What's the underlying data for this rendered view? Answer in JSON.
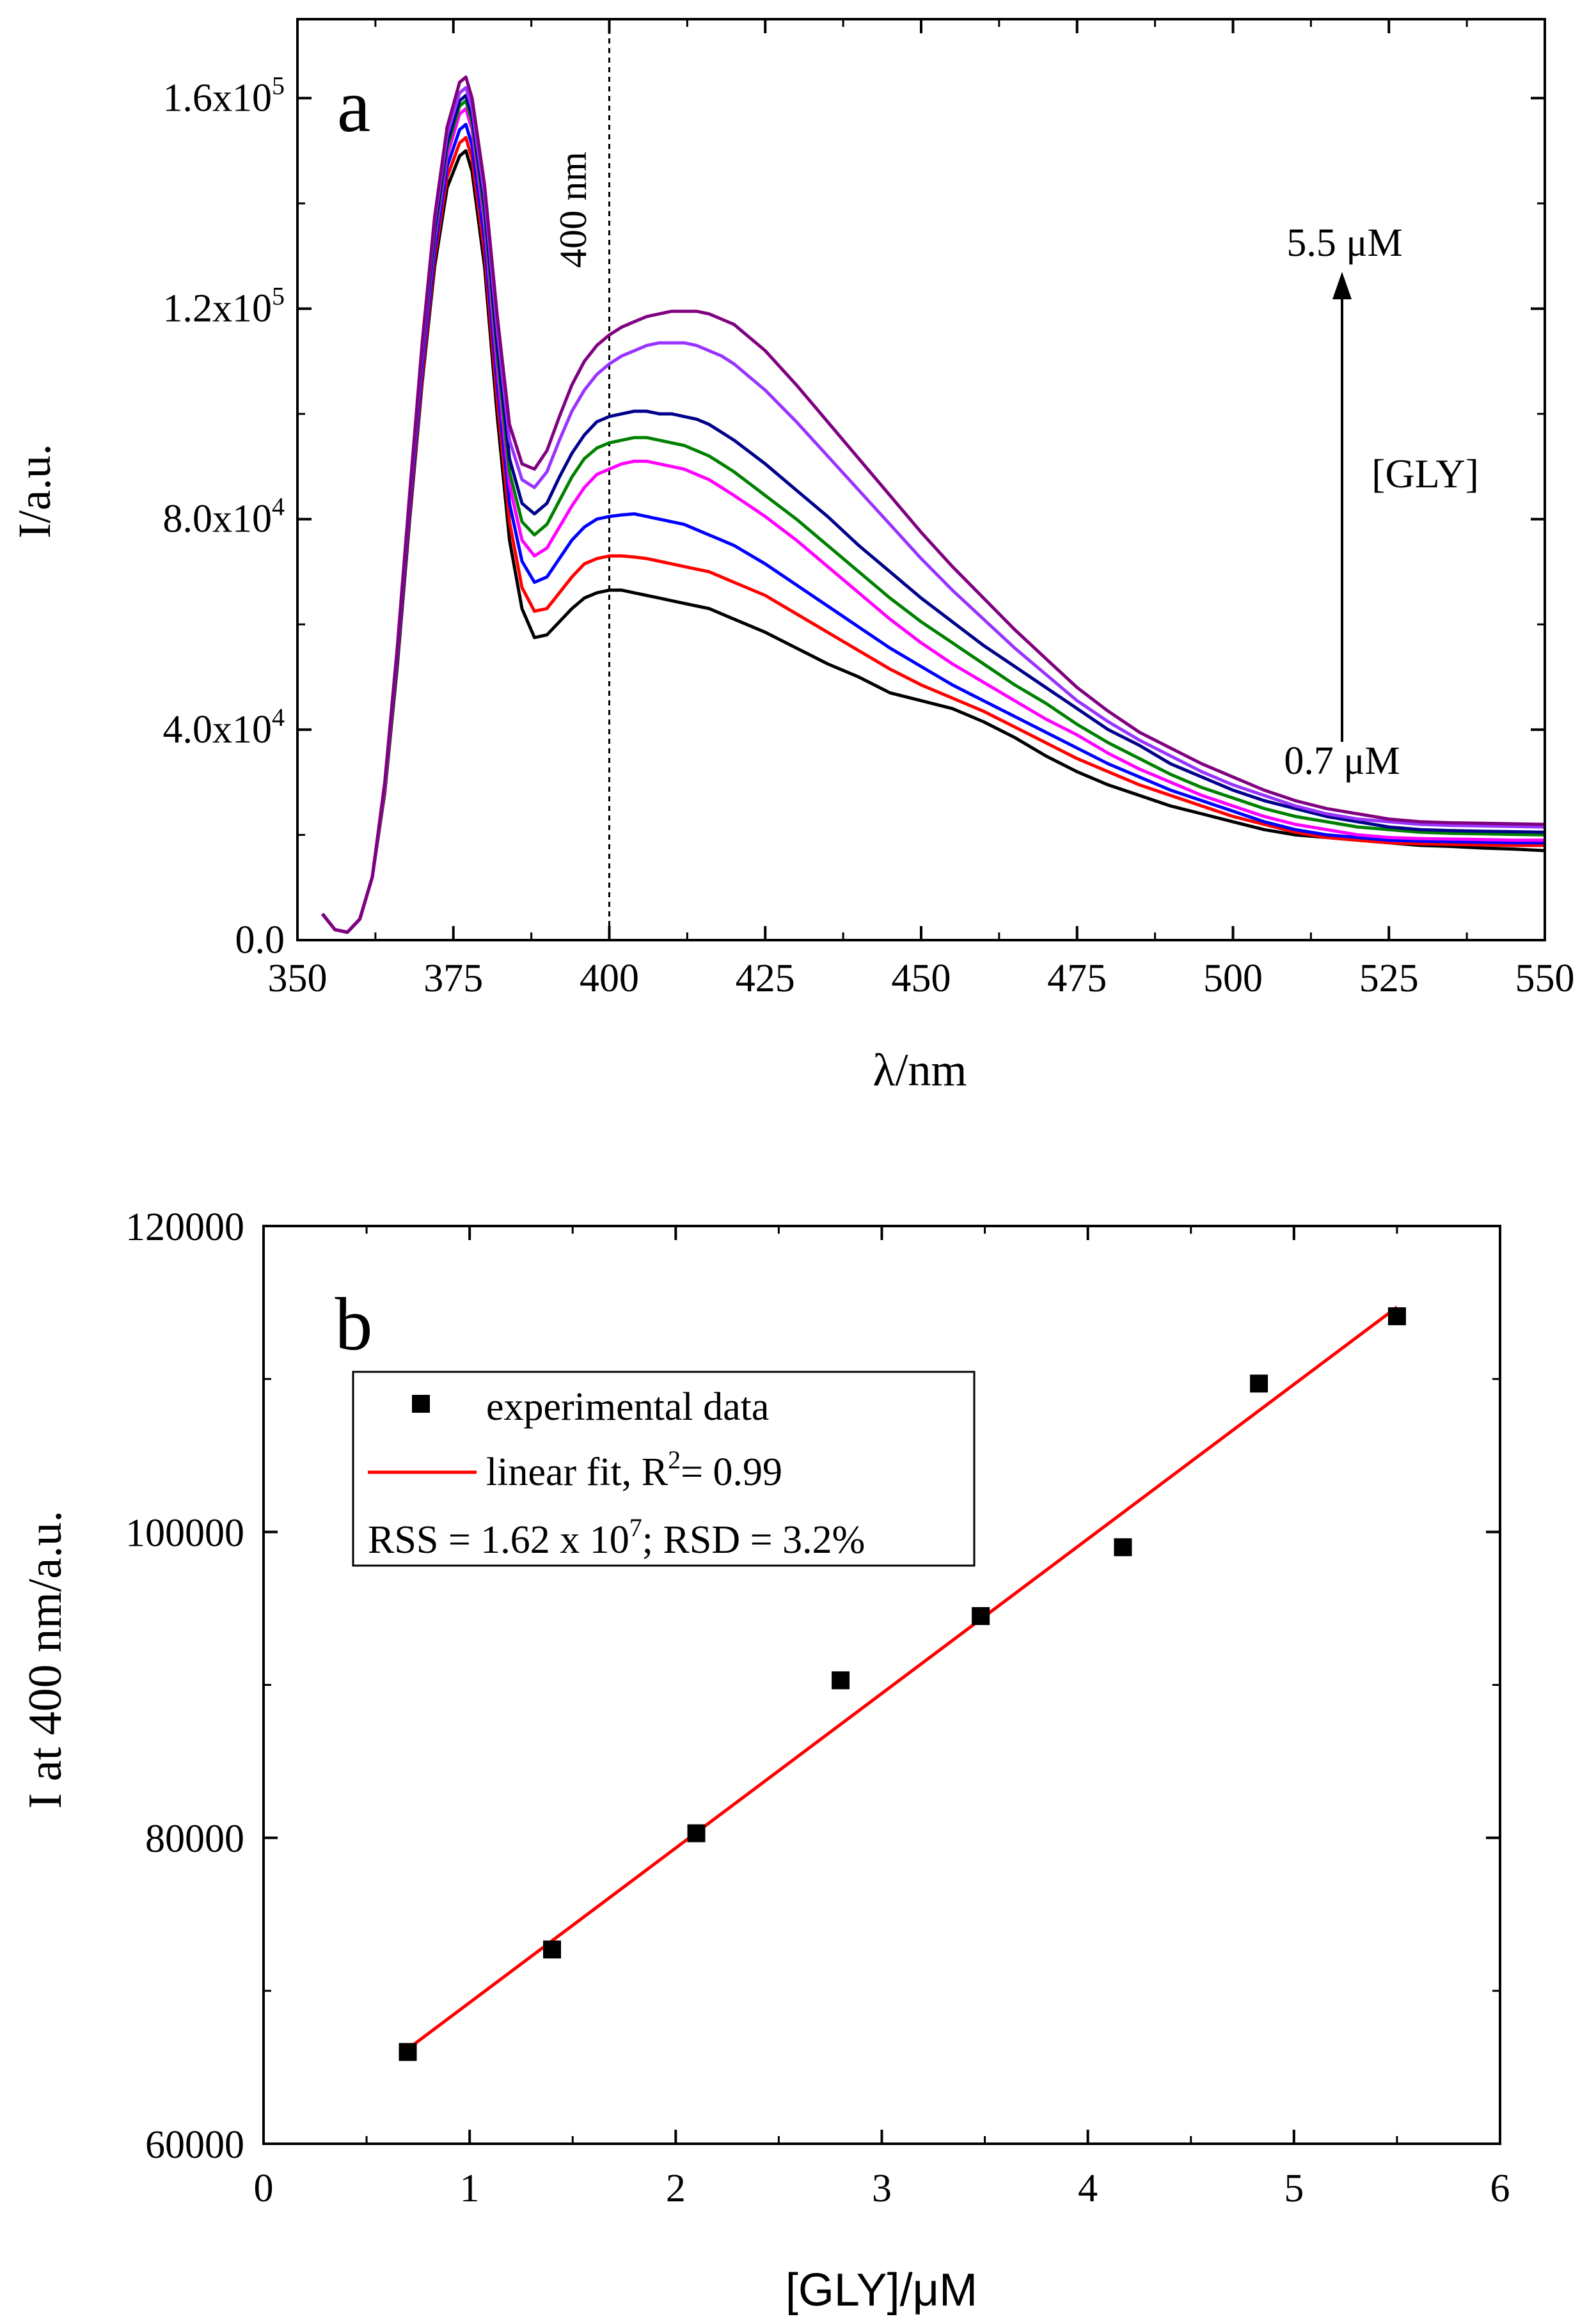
{
  "chart_data": [
    {
      "panel_label": "a",
      "type": "line",
      "xlabel": "λ/nm",
      "ylabel": "I/a.u.",
      "xlim": [
        350,
        550
      ],
      "ylim": [
        0,
        175000
      ],
      "x_ticks": [
        350,
        375,
        400,
        425,
        450,
        475,
        500,
        525,
        550
      ],
      "y_ticks": [
        {
          "value": 0,
          "mantissa": "0.0",
          "exp": ""
        },
        {
          "value": 40000,
          "mantissa": "4.0x10",
          "exp": "4"
        },
        {
          "value": 80000,
          "mantissa": "8.0x10",
          "exp": "4"
        },
        {
          "value": 120000,
          "mantissa": "1.2x10",
          "exp": "5"
        },
        {
          "value": 160000,
          "mantissa": "1.6x10",
          "exp": "5"
        }
      ],
      "grid": false,
      "annotations": {
        "ref_line_label": "400 nm",
        "ref_line_x": 400,
        "top_label": "5.5 μM",
        "bottom_label": "0.7 μM",
        "arrow_label": "[GLY]"
      },
      "x": [
        354,
        356,
        358,
        360,
        362,
        364,
        366,
        368,
        370,
        372,
        374,
        376,
        377,
        378,
        380,
        382,
        384,
        386,
        388,
        390,
        392,
        394,
        396,
        398,
        400,
        402,
        404,
        406,
        408,
        410,
        412,
        414,
        416,
        418,
        420,
        425,
        430,
        435,
        440,
        445,
        450,
        455,
        460,
        465,
        470,
        475,
        480,
        485,
        490,
        495,
        500,
        505,
        510,
        515,
        520,
        525,
        530,
        535,
        540,
        545,
        550
      ],
      "series": [
        {
          "color": "#000000",
          "values": [
            5000,
            2000,
            1500,
            4000,
            12000,
            28000,
            52000,
            80000,
            106000,
            128000,
            143000,
            149000,
            150000,
            146000,
            128000,
            100000,
            76000,
            63000,
            57500,
            58000,
            60500,
            63000,
            65000,
            66000,
            66500,
            66500,
            66000,
            65500,
            65000,
            64500,
            64000,
            63500,
            63000,
            62000,
            61000,
            58500,
            55500,
            52500,
            50000,
            47000,
            45500,
            44000,
            41500,
            38500,
            35000,
            32000,
            29500,
            27500,
            25500,
            24000,
            22500,
            21000,
            20000,
            19500,
            19000,
            18500,
            18000,
            17800,
            17500,
            17300,
            17000
          ]
        },
        {
          "color": "#ff0000",
          "values": [
            5000,
            2000,
            1500,
            4000,
            12000,
            28500,
            53000,
            81000,
            107000,
            129500,
            145000,
            151500,
            152500,
            148500,
            130500,
            103000,
            79500,
            67000,
            62500,
            63000,
            66000,
            69000,
            71500,
            72500,
            73000,
            73000,
            72800,
            72500,
            72000,
            71500,
            71000,
            70500,
            70000,
            69000,
            68000,
            65500,
            62000,
            58500,
            55000,
            51500,
            48500,
            46000,
            43500,
            40500,
            37500,
            34500,
            32000,
            29500,
            27500,
            25500,
            23500,
            22000,
            20500,
            19500,
            19000,
            18500,
            18300,
            18200,
            18100,
            18000,
            18000
          ]
        },
        {
          "color": "#0000ff",
          "values": [
            5000,
            2000,
            1500,
            4000,
            12000,
            29000,
            53500,
            82000,
            108500,
            131000,
            147000,
            154000,
            155000,
            151000,
            133000,
            106000,
            83000,
            72000,
            68000,
            69000,
            72500,
            76000,
            78500,
            80000,
            80500,
            80800,
            81000,
            80500,
            80000,
            79500,
            79000,
            78000,
            77000,
            76000,
            75000,
            71500,
            67500,
            63500,
            59500,
            55500,
            52000,
            48500,
            45500,
            42500,
            39500,
            36500,
            33500,
            31000,
            28500,
            26500,
            24500,
            22500,
            21000,
            20000,
            19500,
            19000,
            18800,
            18700,
            18600,
            18500,
            18500
          ]
        },
        {
          "color": "#ff00ff",
          "values": [
            5000,
            2000,
            1500,
            4000,
            12000,
            29000,
            54000,
            83000,
            110000,
            133000,
            149000,
            157000,
            158000,
            154000,
            136000,
            109000,
            86500,
            76000,
            73000,
            74500,
            78500,
            82500,
            86000,
            88500,
            89500,
            90500,
            91000,
            91000,
            90500,
            90000,
            89500,
            88500,
            87500,
            86000,
            84500,
            80500,
            76000,
            71000,
            66000,
            61000,
            56500,
            52500,
            49000,
            45500,
            42000,
            39000,
            35500,
            32500,
            30000,
            27500,
            25500,
            23500,
            22000,
            21000,
            20000,
            19500,
            19300,
            19200,
            19100,
            19000,
            19000
          ]
        },
        {
          "color": "#008000",
          "values": [
            5000,
            2000,
            1500,
            4000,
            12000,
            29000,
            54000,
            83500,
            111000,
            134000,
            150500,
            158500,
            159500,
            155500,
            138000,
            111500,
            89000,
            79500,
            77000,
            79000,
            83500,
            88000,
            91500,
            93500,
            94500,
            95000,
            95500,
            95500,
            95000,
            94500,
            94000,
            93000,
            92000,
            90500,
            89000,
            84500,
            80000,
            75000,
            70000,
            65000,
            60500,
            56500,
            52500,
            48500,
            45000,
            41000,
            37500,
            34500,
            31500,
            29000,
            27000,
            25000,
            23500,
            22500,
            21500,
            21000,
            20500,
            20300,
            20200,
            20100,
            20000
          ]
        },
        {
          "color": "#00008b",
          "values": [
            5000,
            2000,
            1500,
            4000,
            12000,
            29500,
            54500,
            84000,
            111500,
            135000,
            151500,
            159500,
            160500,
            156500,
            139500,
            113500,
            91500,
            83000,
            81000,
            83000,
            88000,
            92500,
            96000,
            98500,
            99500,
            100000,
            100500,
            100500,
            100000,
            100000,
            99500,
            99000,
            98000,
            96500,
            95000,
            90500,
            85500,
            80500,
            75000,
            70000,
            65000,
            60500,
            56000,
            52000,
            48000,
            44000,
            40000,
            37000,
            33500,
            31000,
            28500,
            26500,
            25000,
            23500,
            22500,
            21500,
            21000,
            20800,
            20700,
            20600,
            20500
          ]
        },
        {
          "color": "#9933ff",
          "values": [
            5000,
            2000,
            1500,
            4000,
            12000,
            29500,
            55000,
            84500,
            112500,
            136500,
            153000,
            161000,
            162000,
            158000,
            141500,
            116500,
            95000,
            87500,
            86000,
            89000,
            95000,
            100500,
            104500,
            107500,
            109500,
            111000,
            112000,
            113000,
            113500,
            113500,
            113500,
            113000,
            112000,
            111000,
            109500,
            104500,
            98500,
            92000,
            85500,
            79000,
            72500,
            66500,
            61000,
            55500,
            50500,
            45500,
            41500,
            38000,
            35000,
            32000,
            29500,
            27500,
            25500,
            24000,
            23000,
            22500,
            22000,
            21800,
            21700,
            21600,
            21500
          ]
        },
        {
          "color": "#800080",
          "values": [
            5000,
            2000,
            1500,
            4000,
            12000,
            30000,
            55500,
            85000,
            113500,
            137500,
            154500,
            163000,
            164000,
            160000,
            143500,
            119000,
            98000,
            90500,
            89500,
            93000,
            99500,
            105500,
            110000,
            113000,
            115000,
            116500,
            117500,
            118500,
            119000,
            119500,
            119500,
            119500,
            119000,
            118000,
            117000,
            112000,
            105500,
            98500,
            91500,
            84500,
            77500,
            71000,
            65000,
            59000,
            53500,
            48000,
            43500,
            39500,
            36500,
            33500,
            31000,
            28500,
            26500,
            25000,
            24000,
            23000,
            22500,
            22300,
            22200,
            22100,
            22000
          ]
        }
      ]
    },
    {
      "panel_label": "b",
      "type": "scatter",
      "xlabel": "[GLY]/μM",
      "ylabel": "I at 400 nm/a.u.",
      "xlim": [
        0,
        6
      ],
      "ylim": [
        60000,
        120000
      ],
      "x_ticks": [
        0,
        1,
        2,
        3,
        4,
        5,
        6
      ],
      "y_ticks": [
        60000,
        80000,
        100000,
        120000
      ],
      "grid": false,
      "legend": {
        "position": "top-left",
        "entries": [
          {
            "label": "experimental data"
          },
          {
            "label_main": "linear fit, R",
            "label_sup": "2",
            "label_tail": "= 0.99"
          }
        ],
        "stats_main": "RSS = 1.62 x 10",
        "stats_sup": "7",
        "stats_tail": "; RSD = 3.2%"
      },
      "series": [
        {
          "name": "experimental data",
          "color": "#000000",
          "x": [
            0.7,
            1.4,
            2.1,
            2.8,
            3.48,
            4.17,
            4.83,
            5.5
          ],
          "y": [
            66000,
            72700,
            80300,
            90300,
            94500,
            99000,
            109700,
            114100
          ]
        },
        {
          "name": "linear fit, R2= 0.99",
          "color": "#ff0000",
          "x": [
            0.7,
            5.5
          ],
          "y": [
            66200,
            114700
          ]
        }
      ]
    }
  ]
}
